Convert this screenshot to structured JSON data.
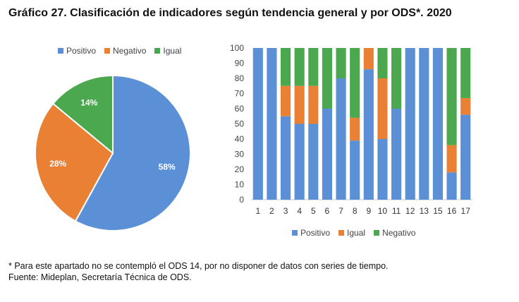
{
  "title": "Gráfico 27. Clasificación de indicadores según tendencia general y por ODS*. 2020",
  "colors": {
    "blue": "#5b8fd6",
    "orange": "#ea8034",
    "green": "#4ba84f"
  },
  "chart_data": [
    {
      "type": "pie",
      "legend_position": "top",
      "legend": [
        "Positivo",
        "Negativo",
        "Igual"
      ],
      "slices": [
        {
          "label": "Positivo",
          "value": 58,
          "text": "58%",
          "color": "#5b8fd6"
        },
        {
          "label": "Negativo",
          "value": 28,
          "text": "28%",
          "color": "#ea8034"
        },
        {
          "label": "Igual",
          "value": 14,
          "text": "14%",
          "color": "#4ba84f"
        }
      ]
    },
    {
      "type": "bar",
      "stacked": true,
      "legend_position": "bottom",
      "grid": false,
      "categories": [
        "1",
        "2",
        "3",
        "4",
        "5",
        "6",
        "7",
        "8",
        "9",
        "10",
        "11",
        "12",
        "13",
        "15",
        "16",
        "17"
      ],
      "ylim": [
        0,
        100
      ],
      "yticks": [
        "0",
        "10",
        "20",
        "30",
        "40",
        "50",
        "60",
        "70",
        "80",
        "90",
        "100"
      ],
      "series": [
        {
          "name": "Positivo",
          "color": "#5b8fd6",
          "values": [
            100,
            100,
            55,
            50,
            50,
            60,
            80,
            39,
            86,
            40,
            60,
            100,
            100,
            100,
            18,
            56
          ]
        },
        {
          "name": "Igual",
          "color": "#ea8034",
          "values": [
            0,
            0,
            20,
            25,
            25,
            0,
            0,
            15,
            14,
            40,
            0,
            0,
            0,
            0,
            18,
            11
          ]
        },
        {
          "name": "Negativo",
          "color": "#4ba84f",
          "values": [
            0,
            0,
            25,
            25,
            25,
            40,
            20,
            46,
            0,
            20,
            40,
            0,
            0,
            0,
            64,
            33
          ]
        }
      ]
    }
  ],
  "notes": {
    "footnote": "* Para este apartado no se contempló el ODS 14, por no disponer de datos con series de tiempo.",
    "source": "Fuente: Mideplan, Secretaría Técnica de ODS."
  }
}
